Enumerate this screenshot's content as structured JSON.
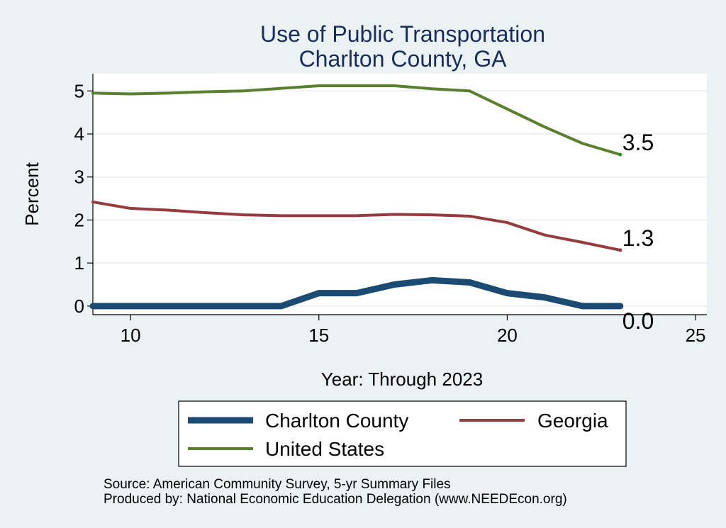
{
  "chart_data": {
    "type": "line",
    "title": [
      "Use of Public Transportation",
      "Charlton County, GA"
    ],
    "xlabel": "Year: Through 2023",
    "ylabel": "Percent",
    "xlim": [
      9,
      25.3
    ],
    "ylim": [
      -0.2,
      5.4
    ],
    "xticks": [
      10,
      15,
      20,
      25
    ],
    "yticks": [
      0,
      1,
      2,
      3,
      4,
      5
    ],
    "grid": "horizontal",
    "legend_position": "bottom",
    "series": [
      {
        "name": "Charlton County",
        "color": "#1b4a73",
        "x": [
          9,
          10,
          11,
          12,
          13,
          14,
          15,
          16,
          17,
          18,
          19,
          20,
          21,
          22,
          23
        ],
        "values": [
          0.0,
          0.0,
          0.0,
          0.0,
          0.0,
          0.0,
          0.3,
          0.3,
          0.5,
          0.6,
          0.55,
          0.3,
          0.2,
          0.0,
          0.0
        ],
        "end_label": "0.0"
      },
      {
        "name": "Georgia",
        "color": "#963b3e",
        "x": [
          9,
          10,
          11,
          12,
          13,
          14,
          15,
          16,
          17,
          18,
          19,
          20,
          21,
          22,
          23
        ],
        "values": [
          2.42,
          2.27,
          2.23,
          2.17,
          2.12,
          2.1,
          2.1,
          2.1,
          2.13,
          2.12,
          2.09,
          1.94,
          1.65,
          1.48,
          1.3
        ],
        "end_label": "1.3"
      },
      {
        "name": "United States",
        "color": "#5a7f2f",
        "x": [
          9,
          10,
          11,
          12,
          13,
          14,
          15,
          16,
          17,
          18,
          19,
          20,
          21,
          22,
          23
        ],
        "values": [
          4.95,
          4.93,
          4.95,
          4.98,
          5.0,
          5.06,
          5.12,
          5.12,
          5.12,
          5.05,
          5.0,
          4.58,
          4.16,
          3.78,
          3.52
        ],
        "end_label": "3.5"
      }
    ],
    "notes": [
      "Source: American Community Survey, 5-yr Summary Files",
      "Produced by: National Economic Education Delegation (www.NEEDEcon.org)"
    ]
  }
}
